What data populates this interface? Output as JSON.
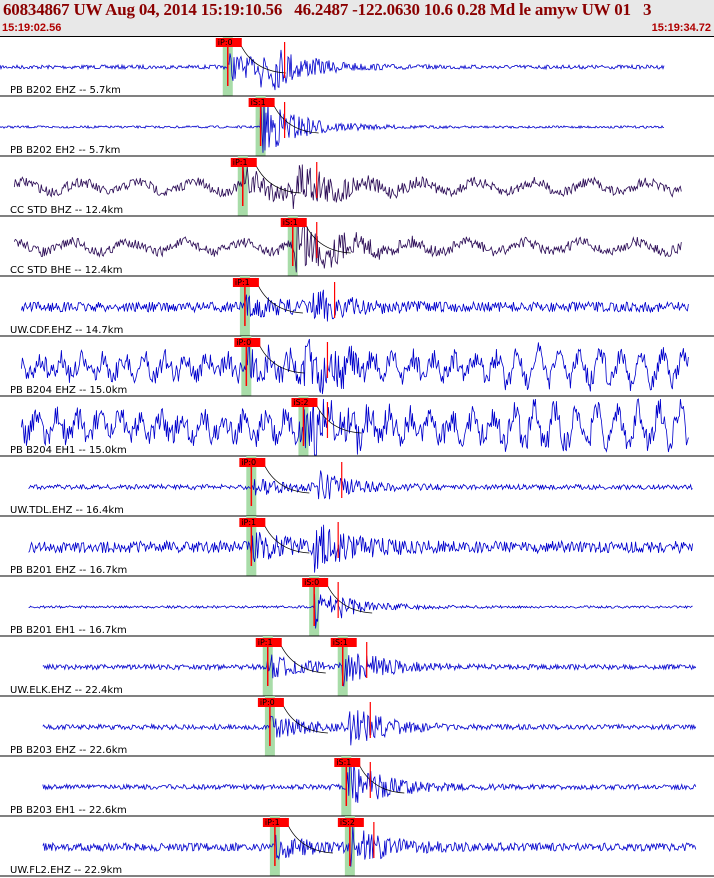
{
  "header": {
    "title": "60834867 UW Aug 04, 2014 15:19:10.56   46.2487 -122.0630 10.6 0.28 Md le amyw UW 01   3",
    "start_time": "15:19:02.56",
    "end_time": "15:19:34.72"
  },
  "colors": {
    "trace_blue": "#0000cc",
    "trace_purple": "#2a0a55",
    "pick_red": "#ff0000",
    "window_green": "#a8dca8",
    "header_red": "#8b0000"
  },
  "chart_data": {
    "type": "line",
    "title": "60834867 UW Aug 04, 2014 15:19:10.56   46.2487 -122.0630 10.6 0.28 Md le amyw UW 01   3",
    "x_range": [
      "15:19:02.56",
      "15:19:34.72"
    ],
    "traces": [
      {
        "label": "PB B202 EHZ -- 5.7km",
        "color": "blue",
        "picks": [
          {
            "t": "iP:0",
            "p": 0.319
          }
        ],
        "s": 0.365,
        "data_start": 0.0,
        "data_end": 0.93,
        "noise": 2,
        "amp": 26,
        "code": "eq"
      },
      {
        "label": "PB B202 EH2 -- 5.7km",
        "color": "blue",
        "picks": [
          {
            "t": "iS:1",
            "p": 0.365
          }
        ],
        "s": 0.365,
        "data_start": 0.0,
        "data_end": 0.93,
        "noise": 1.2,
        "amp": 20,
        "code": "eq"
      },
      {
        "label": "CC STD BHZ -- 12.4km",
        "color": "purple",
        "picks": [
          {
            "t": "iP:1",
            "p": 0.34
          }
        ],
        "s": 0.41,
        "data_start": 0.02,
        "data_end": 0.955,
        "noise": 5,
        "amp": 24,
        "code": "eq"
      },
      {
        "label": "CC STD BHE -- 12.4km",
        "color": "purple",
        "picks": [
          {
            "t": "iS:1",
            "p": 0.41
          }
        ],
        "s": 0.41,
        "data_start": 0.02,
        "data_end": 0.955,
        "noise": 5,
        "amp": 22,
        "code": "eq"
      },
      {
        "label": "UW.CDF.EHZ -- 14.7km",
        "color": "blue",
        "picks": [
          {
            "t": "iP:1",
            "p": 0.343
          }
        ],
        "s": 0.435,
        "data_start": 0.03,
        "data_end": 0.965,
        "noise": 5,
        "amp": 16,
        "code": "eq"
      },
      {
        "label": "PB B204 EHZ -- 15.0km",
        "color": "blue",
        "picks": [
          {
            "t": "iP:0",
            "p": 0.345
          }
        ],
        "s": 0.425,
        "data_start": 0.03,
        "data_end": 0.965,
        "noise": 10,
        "amp": 18,
        "code": "eq"
      },
      {
        "label": "PB B204 EH1 -- 15.0km",
        "color": "blue",
        "picks": [
          {
            "t": "iS:2",
            "p": 0.425
          }
        ],
        "s": 0.425,
        "data_start": 0.03,
        "data_end": 0.965,
        "noise": 12,
        "amp": 20,
        "code": "eq"
      },
      {
        "label": "UW.TDL.EHZ -- 16.4km",
        "color": "blue",
        "picks": [
          {
            "t": "iP:0",
            "p": 0.352
          }
        ],
        "s": 0.445,
        "data_start": 0.04,
        "data_end": 0.97,
        "noise": 2.5,
        "amp": 14,
        "code": "eq"
      },
      {
        "label": "PB B201 EHZ -- 16.7km",
        "color": "blue",
        "picks": [
          {
            "t": "iP:1",
            "p": 0.352
          }
        ],
        "s": 0.44,
        "data_start": 0.04,
        "data_end": 0.97,
        "noise": 6,
        "amp": 20,
        "code": "eq"
      },
      {
        "label": "PB B201 EH1 -- 16.7km",
        "color": "blue",
        "picks": [
          {
            "t": "iS:0",
            "p": 0.44
          }
        ],
        "s": 0.44,
        "data_start": 0.04,
        "data_end": 0.97,
        "noise": 1.2,
        "amp": 14,
        "code": "eq"
      },
      {
        "label": "UW.ELK.EHZ -- 22.4km",
        "color": "blue",
        "picks": [
          {
            "t": "iP:1",
            "p": 0.375
          },
          {
            "t": "iS:1",
            "p": 0.48
          }
        ],
        "s": 0.48,
        "data_start": 0.06,
        "data_end": 0.975,
        "noise": 2.5,
        "amp": 20,
        "code": "eq"
      },
      {
        "label": "PB B203 EHZ -- 22.6km",
        "color": "blue",
        "picks": [
          {
            "t": "iP:0",
            "p": 0.378
          }
        ],
        "s": 0.485,
        "data_start": 0.06,
        "data_end": 0.975,
        "noise": 2.5,
        "amp": 20,
        "code": "eq"
      },
      {
        "label": "PB B203 EH1 -- 22.6km",
        "color": "blue",
        "picks": [
          {
            "t": "iS:1",
            "p": 0.485
          }
        ],
        "s": 0.485,
        "data_start": 0.06,
        "data_end": 0.975,
        "noise": 2.5,
        "amp": 18,
        "code": "eq"
      },
      {
        "label": "UW.FL2.EHZ -- 22.9km",
        "color": "blue",
        "picks": [
          {
            "t": "iP:1",
            "p": 0.385
          },
          {
            "t": "iS:2",
            "p": 0.49
          }
        ],
        "s": 0.49,
        "data_start": 0.06,
        "data_end": 0.975,
        "noise": 4,
        "amp": 18,
        "code": "eq"
      }
    ]
  }
}
